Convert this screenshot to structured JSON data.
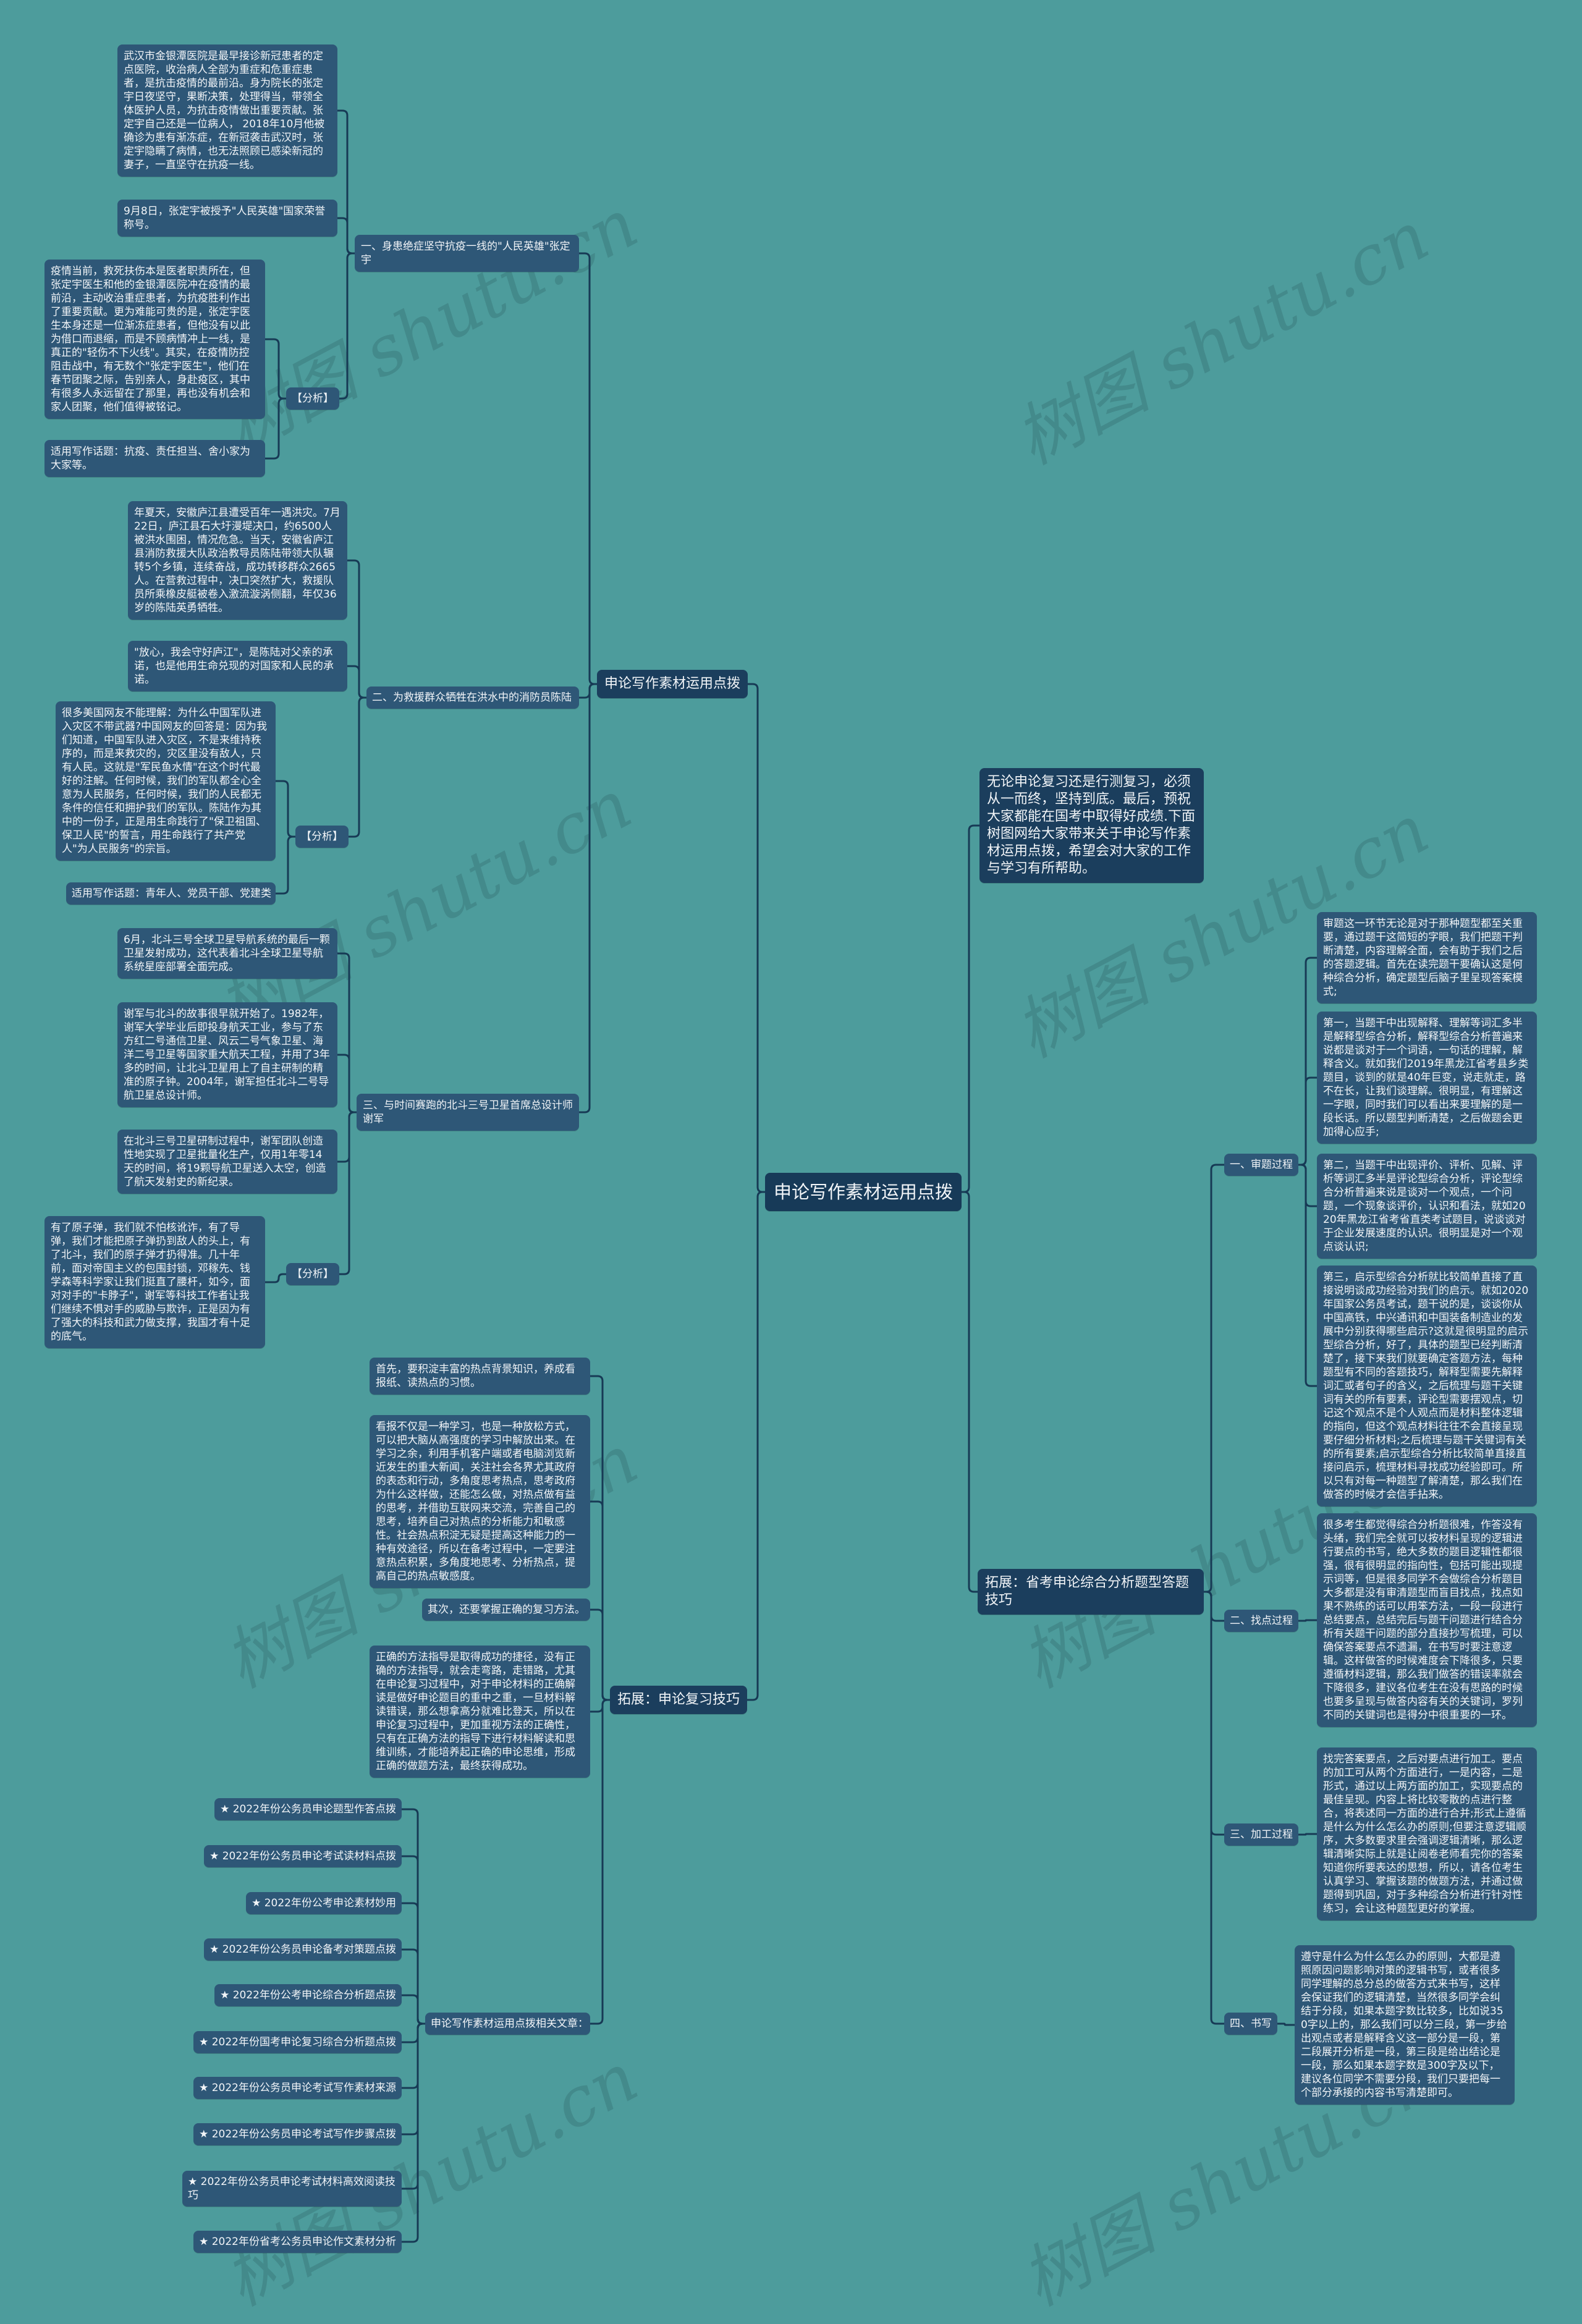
{
  "watermark": "树图 shutu.cn",
  "root": "申论写作素材运用点拨",
  "left": {
    "material": {
      "label": "申论写作素材运用点拨",
      "sections": [
        {
          "label": "一、身患绝症坚守抗疫一线的\"人民英雄\"张定宇",
          "items": [
            "武汉市金银潭医院是最早接诊新冠患者的定点医院，收治病人全部为重症和危重症患者，是抗击疫情的最前沿。身为院长的张定宇日夜坚守，果断决策，处理得当，带领全体医护人员，为抗击疫情做出重要贡献。张定宇自己还是一位病人， 2018年10月他被确诊为患有渐冻症，在新冠袭击武汉时，张定宇隐瞒了病情，也无法照顾已感染新冠的妻子，一直坚守在抗疫一线。",
            "9月8日，张定宇被授予\"人民英雄\"国家荣誉称号。"
          ],
          "analysis": {
            "label": "【分析】",
            "items": [
              "疫情当前，救死扶伤本是医者职责所在，但张定宇医生和他的金银潭医院冲在疫情的最前沿，主动收治重症患者，为抗疫胜利作出了重要贡献。更为难能可贵的是，张定宇医生本身还是一位渐冻症患者，但他没有以此为借口而退缩，而是不顾病情冲上一线，是真正的\"轻伤不下火线\"。其实，在疫情防控阻击战中，有无数个\"张定宇医生\"，他们在春节团聚之际，告别亲人，身赴疫区，其中有很多人永远留在了那里，再也没有机会和家人团聚，他们值得被铭记。",
              "适用写作话题：抗疫、责任担当、舍小家为大家等。"
            ]
          }
        },
        {
          "label": "二、为救援群众牺牲在洪水中的消防员陈陆",
          "items": [
            "年夏天，安徽庐江县遭受百年一遇洪灾。7月22日，庐江县石大圩漫堤决口，约6500人被洪水围困，情况危急。当天，安徽省庐江县消防救援大队政治教导员陈陆带领大队辗转5个乡镇，连续奋战，成功转移群众2665人。在营救过程中，决口突然扩大，救援队员所乘橡皮艇被卷入激流漩涡侧翻，年仅36岁的陈陆英勇牺牲。",
            "\"放心，我会守好庐江\"，是陈陆对父亲的承诺，也是他用生命兑现的对国家和人民的承诺。"
          ],
          "analysis": {
            "label": "【分析】",
            "items": [
              "很多美国网友不能理解：为什么中国军队进入灾区不带武器?中国网友的回答是：因为我们知道，中国军队进入灾区，不是来维持秩序的，而是来救灾的，灾区里没有敌人，只有人民。这就是\"军民鱼水情\"在这个时代最好的注解。任何时候，我们的军队都全心全意为人民服务，任何时候，我们的人民都无条件的信任和拥护我们的军队。陈陆作为其中的一份子，正是用生命践行了\"保卫祖国、保卫人民\"的誓言，用生命践行了共产党人\"为人民服务\"的宗旨。",
              "适用写作话题：青年人、党员干部、党建类"
            ]
          }
        },
        {
          "label": "三、与时间赛跑的北斗三号卫星首席总设计师谢军",
          "items": [
            "6月，北斗三号全球卫星导航系统的最后一颗卫星发射成功，这代表着北斗全球卫星导航系统星座部署全面完成。",
            "谢军与北斗的故事很早就开始了。1982年，谢军大学毕业后即投身航天工业，参与了东方红二号通信卫星、风云二号气象卫星、海洋二号卫星等国家重大航天工程，并用了3年多的时间，让北斗卫星用上了自主研制的精准的原子钟。2004年，谢军担任北斗二号导航卫星总设计师。",
            "在北斗三号卫星研制过程中，谢军团队创造性地实现了卫星批量化生产，仅用1年零14天的时间，将19颗导航卫星送入太空，创造了航天发射史的新纪录。"
          ],
          "analysis": {
            "label": "【分析】",
            "items": [
              "有了原子弹，我们就不怕核讹诈，有了导弹，我们才能把原子弹扔到敌人的头上，有了北斗，我们的原子弹才扔得准。几十年前，面对帝国主义的包围封锁，邓稼先、钱学森等科学家让我们挺直了腰杆，如今，面对对手的\"卡脖子\"，谢军等科技工作者让我们继续不惧对手的威胁与欺诈，正是因为有了强大的科技和武力做支撑，我国才有十足的底气。"
            ]
          }
        }
      ]
    },
    "review": {
      "label": "拓展：申论复习技巧",
      "items": [
        "首先，要积淀丰富的热点背景知识，养成看报纸、读热点的习惯。",
        "看报不仅是一种学习，也是一种放松方式，可以把大脑从高强度的学习中解放出来。在学习之余，利用手机客户端或者电脑浏览新近发生的重大新闻，关注社会各界尤其政府的表态和行动，多角度思考热点，思考政府为什么这样做，还能怎么做，对热点做有益的思考，并借助互联网来交流，完善自己的思考，培养自己对热点的分析能力和敏感性。社会热点积淀无疑是提高这种能力的一种有效途径，所以在备考过程中，一定要注意热点积累，多角度地思考、分析热点，提高自己的热点敏感度。",
        "其次，还要掌握正确的复习方法。",
        "正确的方法指导是取得成功的捷径，没有正确的方法指导，就会走弯路，走错路，尤其在申论复习过程中，对于申论材料的正确解读是做好申论题目的重中之重，一旦材料解读错误，那么想拿高分就难比登天，所以在申论复习过程中，更加重视方法的正确性，只有在正确方法的指导下进行材料解读和思维训练，才能培养起正确的申论思维，形成正确的做题方法，最终获得成功。"
      ],
      "articles": {
        "label": "申论写作素材运用点拨相关文章：",
        "items": [
          "★ 2022年份公务员申论题型作答点拨",
          "★ 2022年份公务员申论考试读材料点拨",
          "★ 2022年份公考申论素材妙用",
          "★ 2022年份公务员申论备考对策题点拨",
          "★ 2022年份公考申论综合分析题点拨",
          "★ 2022年份国考申论复习综合分析题点拨",
          "★ 2022年份公务员申论考试写作素材来源",
          "★ 2022年份公务员申论考试写作步骤点拨",
          "★ 2022年份公务员申论考试材料高效阅读技巧",
          "★ 2022年份省考公务员申论作文素材分析"
        ]
      }
    }
  },
  "right": {
    "intro": "无论申论复习还是行测复习，必须从一而终，坚持到底。最后，预祝大家都能在国考中取得好成绩.下面树图网给大家带来关于申论写作素材运用点拨，希望会对大家的工作与学习有所帮助。",
    "expand": {
      "label": "拓展：省考申论综合分析题型答题技巧",
      "steps": [
        {
          "label": "一、审题过程",
          "items": [
            "审题这一环节无论是对于那种题型都至关重要，通过题干这简短的字眼，我们把题干判断清楚，内容理解全面，会有助于我们之后的答题逻辑。首先在读完题干要确认这是何种综合分析，确定题型后脑子里呈现答案模式;",
            "第一，当题干中出现解释、理解等词汇多半是解释型综合分析，解释型综合分析普遍来说都是谈对于一个词语，一句话的理解，解释含义。就如我们2019年黑龙江省考县乡类题目，谈到的就是40年巨变，说走就走，路不在长，让我们谈理解。很明显，有理解这一字眼，同时我们可以看出来要理解的是一段长话。所以题型判断清楚，之后做题会更加得心应手;",
            "第二，当题干中出现评价、评析、见解、评析等词汇多半是评论型综合分析，评论型综合分析普遍来说是谈对一个观点，一个问题，一个现象谈评价，认识和看法，就如2020年黑龙江省考省直类考试题目，说谈谈对于企业发展速度的认识。很明显是对一个观点谈认识;",
            "第三，启示型综合分析就比较简单直接了直接说明谈成功经验对我们的启示。就如2020年国家公务员考试，题干说的是，谈谈你从中国高铁，中兴通讯和中国装备制造业的发展中分别获得哪些启示?这就是很明显的启示型综合分析，好了，具体的题型已经判断清楚了，接下来我们就要确定答题方法，每种题型有不同的答题技巧，解释型需要先解释词汇或者句子的含义，之后梳理与题干关键词有关的所有要素，评论型需要摆观点，切记这个观点不是个人观点而是材料整体逻辑的指向，但这个观点材料往往不会直接呈现要仔细分析材料;之后梳理与题干关键词有关的所有要素;启示型综合分析比较简单直接直接问启示，梳理材料寻找成功经验即可。所以只有对每一种题型了解清楚，那么我们在做答的时候才会信手拈来。"
          ]
        },
        {
          "label": "二、找点过程",
          "items": [
            "很多考生都觉得综合分析题很难，作答没有头绪，我们完全就可以按材料呈现的逻辑进行要点的书写，绝大多数的题目逻辑性都很强，很有很明显的指向性，包括可能出现提示词等，但是很多同学不会做综合分析题目大多都是没有审清题型而盲目找点，找点如果不熟练的话可以用笨方法，一段一段进行总结要点，总结完后与题干问题进行结合分析有关题干问题的部分直接抄写梳理，可以确保答案要点不遗漏，在书写时要注意逻辑。这样做答的时候难度会下降很多，只要遵循材料逻辑，那么我们做答的错误率就会下降很多，建议各位考生在没有思路的时候也要多呈现与做答内容有关的关键词，罗列不同的关键词也是得分中很重要的一环。"
          ]
        },
        {
          "label": "三、加工过程",
          "items": [
            "找完答案要点，之后对要点进行加工。要点的加工可从两个方面进行，一是内容，二是形式，通过以上两方面的加工，实现要点的最佳呈现。内容上将比较零散的点进行整合，将表述同一方面的进行合并;形式上遵循是什么为什么怎么办的原则;但要注意逻辑顺序，大多数要求里会强调逻辑清晰，那么逻辑清晰实际上就是让阅卷老师看完你的答案知道你所要表达的思想，所以，请各位考生认真学习、掌握该题的做题方法，并通过做题得到巩固，对于多种综合分析进行针对性练习，会让这种题型更好的掌握。"
          ]
        },
        {
          "label": "四、书写",
          "items": [
            "遵守是什么为什么怎么办的原则，大都是遵照原因问题影响对策的逻辑书写，或者很多同学理解的总分总的做答方式来书写，这样会保证我们的逻辑清楚，当然很多同学会纠结于分段，如果本题字数比较多，比如说350字以上的，那么我们可以分三段，第一步给出观点或者是解释含义这一部分是一段，第二段展开分析是一段，第三段是给出结论是一段，那么如果本题字数是300字及以下，建议各位同学不需要分段，我们只要把每一个部分承接的内容书写清楚即可。"
          ]
        }
      ]
    }
  }
}
